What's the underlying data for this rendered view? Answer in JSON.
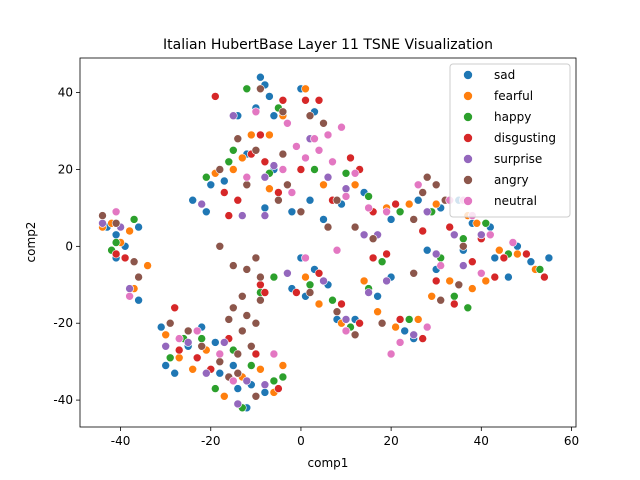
{
  "chart_data": {
    "type": "scatter",
    "title": "Italian HubertBase Layer 11 TSNE Visualization",
    "xlabel": "comp1",
    "ylabel": "comp2",
    "xlim": [
      -49,
      61
    ],
    "ylim": [
      -47,
      49
    ],
    "xticks": [
      -40,
      -20,
      0,
      20,
      40,
      60
    ],
    "yticks": [
      -40,
      -20,
      0,
      20,
      40
    ],
    "grid": false,
    "legend_position": "top-right",
    "series": [
      {
        "name": "sad",
        "color": "#1f77b4",
        "points": [
          [
            -9,
            44
          ],
          [
            -8,
            42
          ],
          [
            -7,
            39
          ],
          [
            -10,
            36
          ],
          [
            -6,
            34
          ],
          [
            -14,
            34
          ],
          [
            0,
            41
          ],
          [
            3,
            35
          ],
          [
            -12,
            24
          ],
          [
            -6,
            20
          ],
          [
            -17,
            17
          ],
          [
            -20,
            16
          ],
          [
            -24,
            12
          ],
          [
            -21,
            9
          ],
          [
            -16,
            8
          ],
          [
            -8,
            10
          ],
          [
            -2,
            9
          ],
          [
            2,
            12
          ],
          [
            5,
            7
          ],
          [
            9,
            11
          ],
          [
            13,
            20
          ],
          [
            14,
            14
          ],
          [
            20,
            7
          ],
          [
            26,
            12
          ],
          [
            31,
            10
          ],
          [
            35,
            12
          ],
          [
            38,
            6
          ],
          [
            42,
            5
          ],
          [
            48,
            0
          ],
          [
            51,
            -4
          ],
          [
            55,
            -3
          ],
          [
            -43,
            5
          ],
          [
            -41,
            3
          ],
          [
            -36,
            5
          ],
          [
            -39,
            0
          ],
          [
            -41,
            -3
          ],
          [
            -36,
            -14
          ],
          [
            0,
            -3
          ],
          [
            3,
            -6
          ],
          [
            6,
            -10
          ],
          [
            1,
            -13
          ],
          [
            -2,
            -11
          ],
          [
            8,
            -19
          ],
          [
            12,
            -19
          ],
          [
            17,
            -13
          ],
          [
            20,
            -8
          ],
          [
            23,
            -22
          ],
          [
            25,
            -24
          ],
          [
            28,
            -1
          ],
          [
            30,
            -6
          ],
          [
            36,
            -1
          ],
          [
            43,
            -3
          ],
          [
            46,
            -8
          ],
          [
            -31,
            -21
          ],
          [
            -30,
            -31
          ],
          [
            -28,
            -33
          ],
          [
            -25,
            -26
          ],
          [
            -22,
            -21
          ],
          [
            -19,
            -25
          ],
          [
            -14,
            -37
          ],
          [
            -11,
            -36
          ],
          [
            -8,
            -38
          ],
          [
            -12,
            -42
          ],
          [
            -15,
            -31
          ],
          [
            -18,
            -33
          ]
        ]
      },
      {
        "name": "fearful",
        "color": "#ff7f0e",
        "points": [
          [
            -11,
            29
          ],
          [
            -7,
            29
          ],
          [
            1,
            41
          ],
          [
            -4,
            34
          ],
          [
            -13,
            23
          ],
          [
            -15,
            20
          ],
          [
            -19,
            19
          ],
          [
            -7,
            15
          ],
          [
            5,
            16
          ],
          [
            12,
            16
          ],
          [
            19,
            10
          ],
          [
            24,
            11
          ],
          [
            30,
            11
          ],
          [
            37,
            8
          ],
          [
            39,
            6
          ],
          [
            44,
            -1
          ],
          [
            48,
            -2
          ],
          [
            52,
            -6
          ],
          [
            -44,
            5
          ],
          [
            -42,
            6
          ],
          [
            -38,
            4
          ],
          [
            -40,
            1
          ],
          [
            -37,
            -11
          ],
          [
            -34,
            -5
          ],
          [
            1,
            -8
          ],
          [
            4,
            -15
          ],
          [
            9,
            -20
          ],
          [
            14,
            -9
          ],
          [
            17,
            -17
          ],
          [
            21,
            -21
          ],
          [
            26,
            -19
          ],
          [
            29,
            -13
          ],
          [
            33,
            -9
          ],
          [
            38,
            -11
          ],
          [
            41,
            -9
          ],
          [
            -30,
            -23
          ],
          [
            -27,
            -29
          ],
          [
            -24,
            -32
          ],
          [
            -21,
            -27
          ],
          [
            -17,
            -39
          ],
          [
            -13,
            -34
          ],
          [
            -9,
            -32
          ],
          [
            -6,
            -38
          ],
          [
            -4,
            -31
          ]
        ]
      },
      {
        "name": "happy",
        "color": "#2ca02c",
        "points": [
          [
            -12,
            41
          ],
          [
            -5,
            36
          ],
          [
            -15,
            25
          ],
          [
            -16,
            22
          ],
          [
            -21,
            18
          ],
          [
            -7,
            19
          ],
          [
            3,
            20
          ],
          [
            10,
            19
          ],
          [
            15,
            13
          ],
          [
            22,
            9
          ],
          [
            29,
            9
          ],
          [
            36,
            2
          ],
          [
            41,
            6
          ],
          [
            46,
            -2
          ],
          [
            53,
            -6
          ],
          [
            -41,
            1
          ],
          [
            -37,
            7
          ],
          [
            -42,
            -1
          ],
          [
            -6,
            -8
          ],
          [
            -9,
            -12
          ],
          [
            2,
            -10
          ],
          [
            7,
            -14
          ],
          [
            11,
            -21
          ],
          [
            15,
            -11
          ],
          [
            18,
            -4
          ],
          [
            24,
            -19
          ],
          [
            31,
            -3
          ],
          [
            34,
            -13
          ],
          [
            37,
            -16
          ],
          [
            -29,
            -29
          ],
          [
            -26,
            -24
          ],
          [
            -22,
            -24
          ],
          [
            -19,
            -37
          ],
          [
            -15,
            -27
          ],
          [
            -11,
            -31
          ],
          [
            -6,
            -35
          ],
          [
            -4,
            -34
          ],
          [
            -13,
            -42
          ]
        ]
      },
      {
        "name": "disgusting",
        "color": "#d62728",
        "points": [
          [
            -19,
            39
          ],
          [
            -9,
            29
          ],
          [
            -4,
            38
          ],
          [
            1,
            38
          ],
          [
            4,
            38
          ],
          [
            -11,
            24
          ],
          [
            -8,
            22
          ],
          [
            -17,
            14
          ],
          [
            -14,
            12
          ],
          [
            -5,
            14
          ],
          [
            0,
            20
          ],
          [
            7,
            12
          ],
          [
            11,
            23
          ],
          [
            13,
            20
          ],
          [
            16,
            9
          ],
          [
            21,
            11
          ],
          [
            27,
            4
          ],
          [
            33,
            5
          ],
          [
            40,
            2
          ],
          [
            45,
            -3
          ],
          [
            50,
            -2
          ],
          [
            54,
            -8
          ],
          [
            -39,
            -3
          ],
          [
            -41,
            -2
          ],
          [
            -16,
            8
          ],
          [
            -9,
            -10
          ],
          [
            -8,
            -12
          ],
          [
            -1,
            -12
          ],
          [
            4,
            -7
          ],
          [
            9,
            -15
          ],
          [
            13,
            -20
          ],
          [
            16,
            -3
          ],
          [
            19,
            -2
          ],
          [
            22,
            -19
          ],
          [
            27,
            -24
          ],
          [
            30,
            -9
          ],
          [
            34,
            -15
          ],
          [
            38,
            -4
          ],
          [
            43,
            -8
          ],
          [
            -28,
            -16
          ],
          [
            -27,
            -27
          ],
          [
            -23,
            -29
          ],
          [
            -20,
            -32
          ],
          [
            -16,
            -24
          ],
          [
            -10,
            -28
          ],
          [
            -5,
            -37
          ]
        ]
      },
      {
        "name": "surprise",
        "color": "#9467bd",
        "points": [
          [
            -15,
            34
          ],
          [
            -6,
            21
          ],
          [
            -8,
            18
          ],
          [
            -22,
            11
          ],
          [
            -13,
            8
          ],
          [
            -8,
            8
          ],
          [
            2,
            28
          ],
          [
            6,
            18
          ],
          [
            10,
            15
          ],
          [
            14,
            3
          ],
          [
            17,
            3
          ],
          [
            28,
            9
          ],
          [
            34,
            3
          ],
          [
            40,
            3
          ],
          [
            -44,
            6
          ],
          [
            -40,
            5
          ],
          [
            -38,
            -11
          ],
          [
            -3,
            -7
          ],
          [
            5,
            -9
          ],
          [
            10,
            -19
          ],
          [
            15,
            -12
          ],
          [
            19,
            -9
          ],
          [
            25,
            -23
          ],
          [
            30,
            -2
          ],
          [
            36,
            -5
          ],
          [
            -30,
            -26
          ],
          [
            -25,
            -25
          ],
          [
            -21,
            -33
          ],
          [
            -17,
            -25
          ],
          [
            -12,
            -35
          ],
          [
            -8,
            -36
          ],
          [
            -14,
            -41
          ]
        ]
      },
      {
        "name": "angry",
        "color": "#8c564b",
        "points": [
          [
            -9,
            41
          ],
          [
            -4,
            35
          ],
          [
            2,
            34
          ],
          [
            5,
            32
          ],
          [
            -14,
            28
          ],
          [
            -10,
            25
          ],
          [
            -4,
            24
          ],
          [
            -18,
            20
          ],
          [
            -12,
            16
          ],
          [
            -5,
            12
          ],
          [
            -3,
            16
          ],
          [
            0,
            9
          ],
          [
            6,
            5
          ],
          [
            8,
            12
          ],
          [
            12,
            5
          ],
          [
            16,
            2
          ],
          [
            25,
            7
          ],
          [
            27,
            14
          ],
          [
            28,
            18
          ],
          [
            30,
            16
          ],
          [
            32,
            12
          ],
          [
            36,
            0
          ],
          [
            -44,
            8
          ],
          [
            -41,
            6
          ],
          [
            -37,
            -4
          ],
          [
            -36,
            -8
          ],
          [
            -38,
            -13
          ],
          [
            -18,
            0
          ],
          [
            -15,
            -5
          ],
          [
            -12,
            -6
          ],
          [
            -10,
            -3
          ],
          [
            -9,
            -8
          ],
          [
            -13,
            -13
          ],
          [
            -15,
            -16
          ],
          [
            -12,
            -18
          ],
          [
            -16,
            -19
          ],
          [
            -10,
            -20
          ],
          [
            -13,
            -22
          ],
          [
            -11,
            -26
          ],
          [
            -14,
            -28
          ],
          [
            -9,
            -14
          ],
          [
            2,
            -12
          ],
          [
            8,
            -17
          ],
          [
            12,
            -23
          ],
          [
            18,
            -20
          ],
          [
            25,
            -7
          ],
          [
            31,
            -14
          ],
          [
            35,
            -10
          ],
          [
            -29,
            -20
          ],
          [
            -25,
            -22
          ],
          [
            -22,
            -26
          ],
          [
            -18,
            -30
          ],
          [
            -14,
            -33
          ],
          [
            -10,
            -39
          ],
          [
            -16,
            -34
          ]
        ]
      },
      {
        "name": "neutral",
        "color": "#e377c2",
        "points": [
          [
            -10,
            35
          ],
          [
            -3,
            32
          ],
          [
            6,
            29
          ],
          [
            9,
            31
          ],
          [
            3,
            28
          ],
          [
            4,
            25
          ],
          [
            -1,
            26
          ],
          [
            1,
            23
          ],
          [
            -4,
            20
          ],
          [
            7,
            22
          ],
          [
            -12,
            18
          ],
          [
            -2,
            14
          ],
          [
            12,
            19
          ],
          [
            10,
            13
          ],
          [
            15,
            10
          ],
          [
            19,
            9
          ],
          [
            26,
            16
          ],
          [
            33,
            12
          ],
          [
            36,
            12
          ],
          [
            38,
            8
          ],
          [
            42,
            3
          ],
          [
            47,
            1
          ],
          [
            -38,
            -13
          ],
          [
            -41,
            9
          ],
          [
            1,
            -3
          ],
          [
            8,
            -1
          ],
          [
            10,
            -22
          ],
          [
            20,
            -28
          ],
          [
            22,
            -25
          ],
          [
            28,
            -21
          ],
          [
            31,
            -5
          ],
          [
            40,
            -7
          ],
          [
            -27,
            -24
          ],
          [
            -23,
            -22
          ],
          [
            -18,
            -28
          ],
          [
            -15,
            -35
          ],
          [
            -6,
            -28
          ]
        ]
      }
    ]
  }
}
